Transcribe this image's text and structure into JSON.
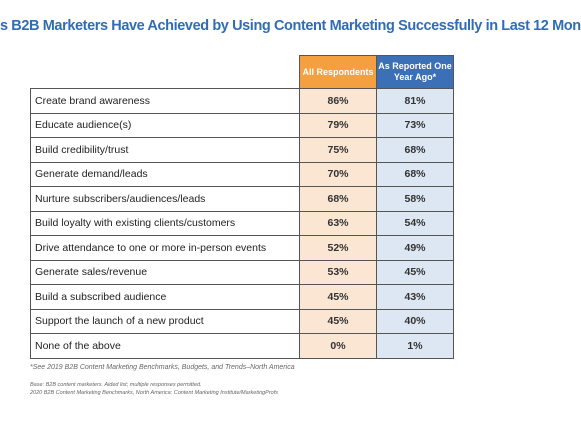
{
  "header": {
    "title": "s B2B Marketers Have Achieved by Using Content Marketing Successfully in Last 12 Mon"
  },
  "table": {
    "columns": [
      "All Respondents",
      "As Reported One Year Ago*"
    ],
    "rows": [
      [
        "Create brand awareness",
        "86%",
        "81%"
      ],
      [
        "Educate audience(s)",
        "79%",
        "73%"
      ],
      [
        "Build credibility/trust",
        "75%",
        "68%"
      ],
      [
        "Generate demand/leads",
        "70%",
        "68%"
      ],
      [
        "Nurture subscribers/audiences/leads",
        "68%",
        "58%"
      ],
      [
        "Build loyalty with existing clients/customers",
        "63%",
        "54%"
      ],
      [
        "Drive attendance to one or more in-person events",
        "52%",
        "49%"
      ],
      [
        "Generate sales/revenue",
        "53%",
        "45%"
      ],
      [
        "Build a subscribed audience",
        "45%",
        "43%"
      ],
      [
        "Support the launch of a new product",
        "45%",
        "40%"
      ],
      [
        "None of the above",
        "0%",
        "1%"
      ]
    ]
  },
  "footnote": "*See 2019 B2B Content Marketing Benchmarks, Budgets, and Trends–North America",
  "source": [
    "Base: B2B content marketers. Aided list; multiple responses permitted.",
    "2020 B2B Content Marketing Benchmarks, North America: Content Marketing Institute/MarketingProfs"
  ]
}
